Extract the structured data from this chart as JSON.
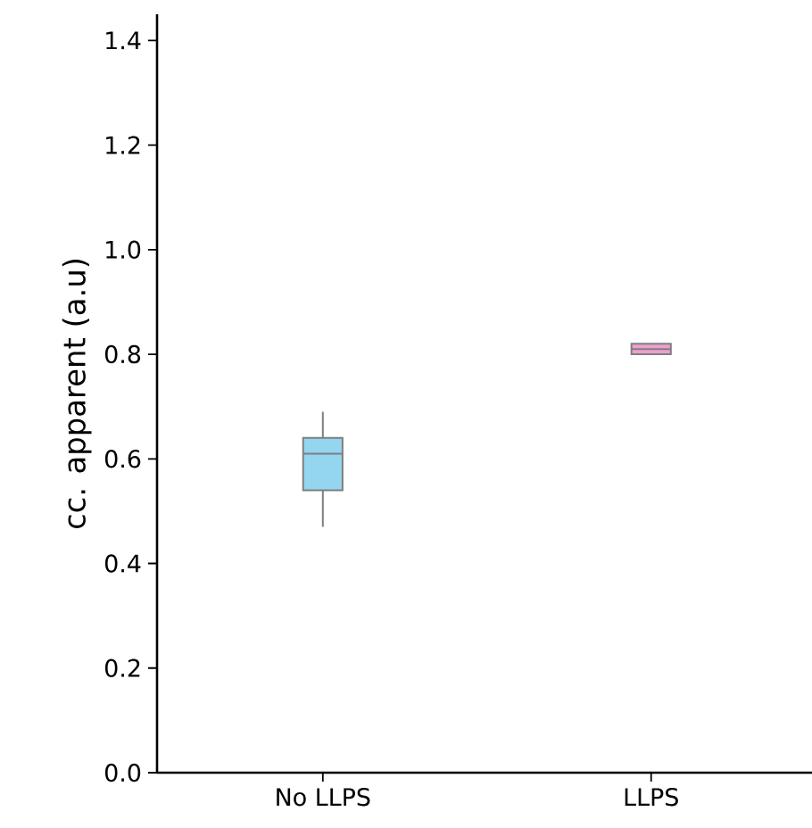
{
  "chart_data": {
    "type": "box",
    "ylabel": "cc. apparent (a.u)",
    "categories": [
      "No LLPS",
      "LLPS"
    ],
    "colors": [
      "#94d5ef",
      "#ee9fcf"
    ],
    "boxes": [
      {
        "low": 0.47,
        "q1": 0.54,
        "median": 0.61,
        "q3": 0.64,
        "high": 0.69
      },
      {
        "low": 0.8,
        "q1": 0.8,
        "median": 0.81,
        "q3": 0.82,
        "high": 0.82
      }
    ],
    "ylim": [
      0,
      1.45
    ],
    "yticks": [
      {
        "value": 0,
        "label": "0.0"
      },
      0.2,
      0.4,
      0.6,
      0.8,
      {
        "value": 1,
        "label": "1.0"
      },
      1.2,
      1.4
    ],
    "grid": false
  }
}
